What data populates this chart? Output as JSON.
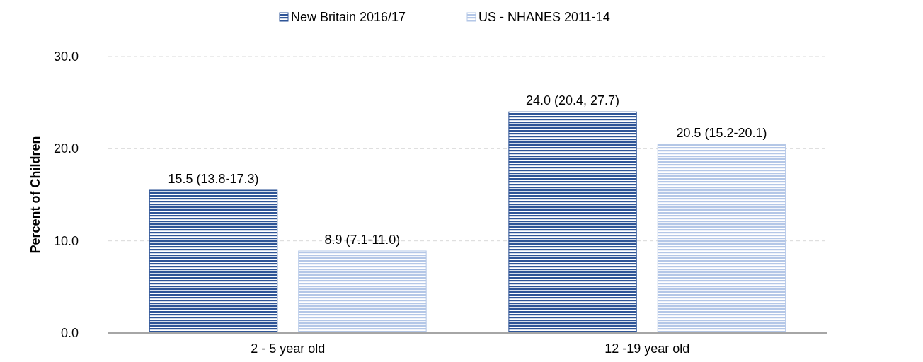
{
  "chart_data": {
    "type": "bar",
    "ylabel": "Percent of Children",
    "categories": [
      "2 - 5 year old",
      "12 -19 year old"
    ],
    "series": [
      {
        "name": "New Britain 2016/17",
        "color": "#2f5597",
        "values": [
          15.5,
          24.0
        ],
        "value_labels": [
          "15.5 (13.8-17.3)",
          "24.0 (20.4, 27.7)"
        ]
      },
      {
        "name": "US - NHANES 2011-14",
        "color": "#b4c7e7",
        "values": [
          8.9,
          20.5
        ],
        "value_labels": [
          "8.9 (7.1-11.0)",
          "20.5 (15.2-20.1)"
        ]
      }
    ],
    "ylim": [
      0,
      30
    ],
    "yticks": [
      {
        "value": 0,
        "label": "0.0"
      },
      {
        "value": 10,
        "label": "10.0"
      },
      {
        "value": 20,
        "label": "20.0"
      },
      {
        "value": 30,
        "label": "30.0"
      }
    ],
    "grid": "y",
    "legend": "top"
  }
}
